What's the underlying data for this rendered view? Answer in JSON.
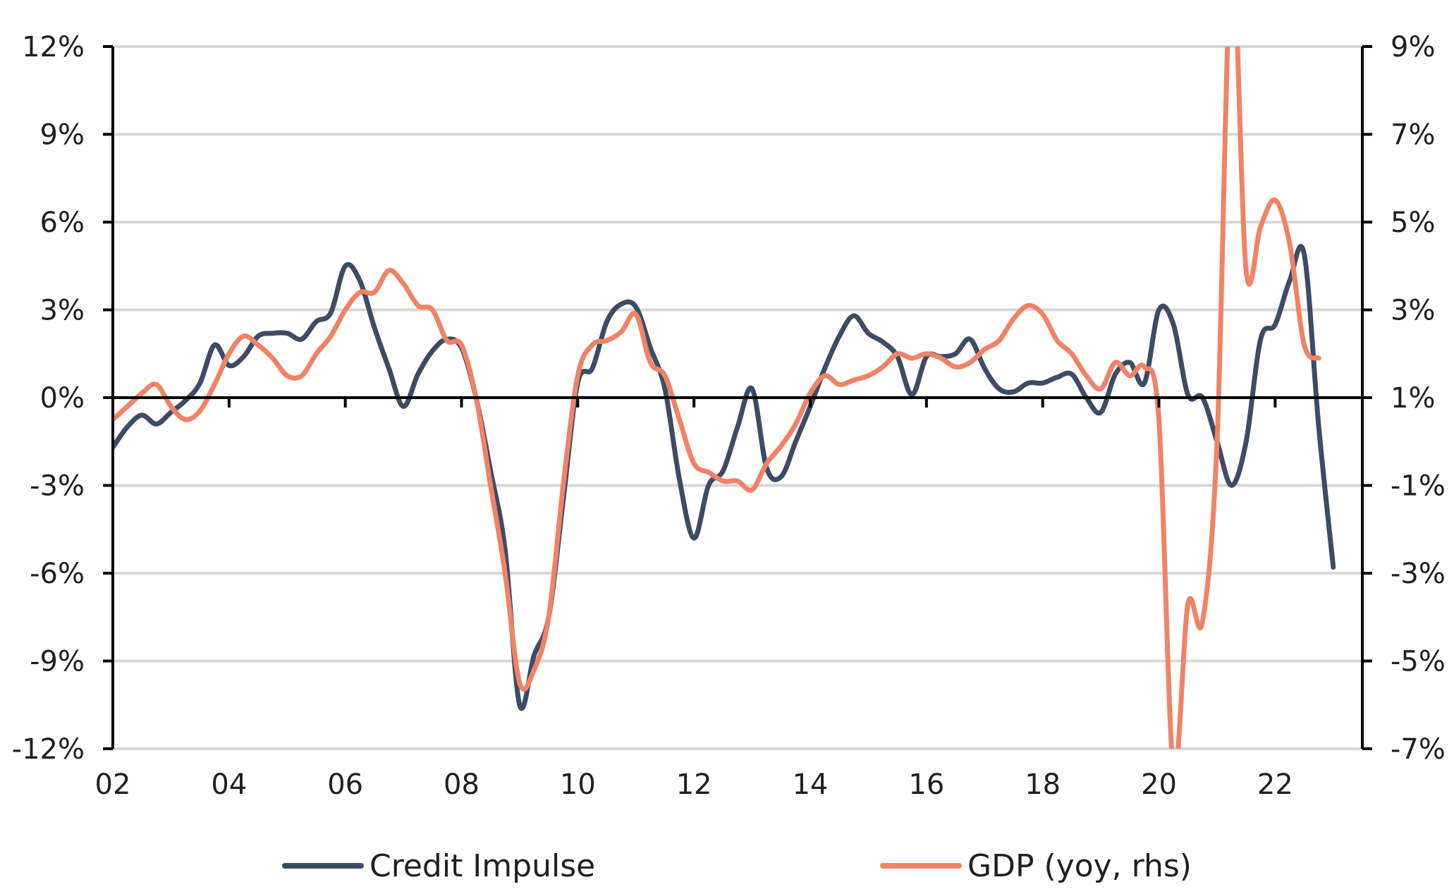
{
  "chart_data": {
    "type": "line",
    "title": "",
    "xlabel": "",
    "x_range": [
      2002.0,
      2023.5
    ],
    "x_ticks": [
      2002,
      2004,
      2006,
      2008,
      2010,
      2012,
      2014,
      2016,
      2018,
      2020,
      2022
    ],
    "x_tick_labels": [
      "02",
      "04",
      "06",
      "08",
      "10",
      "12",
      "14",
      "16",
      "18",
      "20",
      "22"
    ],
    "y_left": {
      "ylim": [
        -12,
        12
      ],
      "ticks": [
        12,
        9,
        6,
        3,
        0,
        -3,
        -6,
        -9,
        -12
      ],
      "tick_labels": [
        "12%",
        "9%",
        "6%",
        "3%",
        "0%",
        "-3%",
        "-6%",
        "-9%",
        "-12%"
      ]
    },
    "y_right": {
      "ylim": [
        -7,
        9
      ],
      "ticks": [
        9,
        7,
        5,
        3,
        1,
        -1,
        -3,
        -5,
        -7
      ],
      "tick_labels": [
        "9%",
        "7%",
        "5%",
        "3%",
        "1%",
        "-1%",
        "-3%",
        "-5%",
        "-7%"
      ]
    },
    "grid": "horizontal",
    "legend_position": "bottom",
    "series": [
      {
        "name": "Credit Impulse",
        "axis": "left",
        "color": "#3d4b66",
        "points": [
          [
            2002.0,
            -1.7
          ],
          [
            2002.25,
            -1.0
          ],
          [
            2002.5,
            -0.6
          ],
          [
            2002.75,
            -0.9
          ],
          [
            2003.0,
            -0.5
          ],
          [
            2003.25,
            -0.1
          ],
          [
            2003.5,
            0.5
          ],
          [
            2003.75,
            1.8
          ],
          [
            2004.0,
            1.1
          ],
          [
            2004.25,
            1.4
          ],
          [
            2004.5,
            2.1
          ],
          [
            2004.75,
            2.2
          ],
          [
            2005.0,
            2.2
          ],
          [
            2005.25,
            2.0
          ],
          [
            2005.5,
            2.6
          ],
          [
            2005.75,
            2.9
          ],
          [
            2006.0,
            4.5
          ],
          [
            2006.25,
            4.0
          ],
          [
            2006.5,
            2.4
          ],
          [
            2006.75,
            1.0
          ],
          [
            2007.0,
            -0.3
          ],
          [
            2007.25,
            0.8
          ],
          [
            2007.5,
            1.6
          ],
          [
            2007.75,
            2.0
          ],
          [
            2008.0,
            1.7
          ],
          [
            2008.25,
            0.0
          ],
          [
            2008.5,
            -2.5
          ],
          [
            2008.75,
            -5.2
          ],
          [
            2009.0,
            -10.5
          ],
          [
            2009.25,
            -8.8
          ],
          [
            2009.5,
            -7.5
          ],
          [
            2009.75,
            -3.5
          ],
          [
            2010.0,
            0.5
          ],
          [
            2010.25,
            1.0
          ],
          [
            2010.5,
            2.6
          ],
          [
            2010.75,
            3.2
          ],
          [
            2011.0,
            3.1
          ],
          [
            2011.25,
            1.7
          ],
          [
            2011.5,
            0.3
          ],
          [
            2011.75,
            -2.8
          ],
          [
            2012.0,
            -4.8
          ],
          [
            2012.25,
            -3.0
          ],
          [
            2012.5,
            -2.5
          ],
          [
            2012.75,
            -1.0
          ],
          [
            2013.0,
            0.3
          ],
          [
            2013.25,
            -2.4
          ],
          [
            2013.5,
            -2.7
          ],
          [
            2013.75,
            -1.5
          ],
          [
            2014.0,
            -0.3
          ],
          [
            2014.25,
            1.0
          ],
          [
            2014.5,
            2.1
          ],
          [
            2014.75,
            2.8
          ],
          [
            2015.0,
            2.2
          ],
          [
            2015.25,
            1.9
          ],
          [
            2015.5,
            1.4
          ],
          [
            2015.75,
            0.1
          ],
          [
            2016.0,
            1.4
          ],
          [
            2016.25,
            1.4
          ],
          [
            2016.5,
            1.5
          ],
          [
            2016.75,
            2.0
          ],
          [
            2017.0,
            1.0
          ],
          [
            2017.25,
            0.3
          ],
          [
            2017.5,
            0.2
          ],
          [
            2017.75,
            0.5
          ],
          [
            2018.0,
            0.5
          ],
          [
            2018.25,
            0.7
          ],
          [
            2018.5,
            0.8
          ],
          [
            2018.75,
            0.0
          ],
          [
            2019.0,
            -0.5
          ],
          [
            2019.25,
            0.8
          ],
          [
            2019.5,
            1.2
          ],
          [
            2019.75,
            0.5
          ],
          [
            2020.0,
            3.0
          ],
          [
            2020.25,
            2.5
          ],
          [
            2020.5,
            0.1
          ],
          [
            2020.75,
            0.0
          ],
          [
            2021.0,
            -1.5
          ],
          [
            2021.25,
            -3.0
          ],
          [
            2021.5,
            -1.5
          ],
          [
            2021.75,
            2.0
          ],
          [
            2022.0,
            2.5
          ],
          [
            2022.25,
            4.0
          ],
          [
            2022.5,
            4.9
          ],
          [
            2022.75,
            -1.0
          ],
          [
            2023.0,
            -5.8
          ]
        ]
      },
      {
        "name": "GDP (yoy, rhs)",
        "axis": "right",
        "color": "#f08366",
        "points": [
          [
            2002.0,
            0.5
          ],
          [
            2002.25,
            0.8
          ],
          [
            2002.5,
            1.1
          ],
          [
            2002.75,
            1.3
          ],
          [
            2003.0,
            0.8
          ],
          [
            2003.25,
            0.5
          ],
          [
            2003.5,
            0.7
          ],
          [
            2003.75,
            1.3
          ],
          [
            2004.0,
            2.0
          ],
          [
            2004.25,
            2.4
          ],
          [
            2004.5,
            2.2
          ],
          [
            2004.75,
            1.9
          ],
          [
            2005.0,
            1.5
          ],
          [
            2005.25,
            1.5
          ],
          [
            2005.5,
            2.0
          ],
          [
            2005.75,
            2.4
          ],
          [
            2006.0,
            3.0
          ],
          [
            2006.25,
            3.4
          ],
          [
            2006.5,
            3.4
          ],
          [
            2006.75,
            3.9
          ],
          [
            2007.0,
            3.6
          ],
          [
            2007.25,
            3.1
          ],
          [
            2007.5,
            3.0
          ],
          [
            2007.75,
            2.3
          ],
          [
            2008.0,
            2.2
          ],
          [
            2008.25,
            1.0
          ],
          [
            2008.5,
            -1.0
          ],
          [
            2008.75,
            -3.0
          ],
          [
            2009.0,
            -5.5
          ],
          [
            2009.25,
            -5.2
          ],
          [
            2009.5,
            -4.0
          ],
          [
            2009.75,
            -1.0
          ],
          [
            2010.0,
            1.5
          ],
          [
            2010.25,
            2.2
          ],
          [
            2010.5,
            2.3
          ],
          [
            2010.75,
            2.5
          ],
          [
            2011.0,
            2.9
          ],
          [
            2011.25,
            1.8
          ],
          [
            2011.5,
            1.5
          ],
          [
            2011.75,
            0.5
          ],
          [
            2012.0,
            -0.5
          ],
          [
            2012.25,
            -0.7
          ],
          [
            2012.5,
            -0.9
          ],
          [
            2012.75,
            -0.9
          ],
          [
            2013.0,
            -1.1
          ],
          [
            2013.25,
            -0.5
          ],
          [
            2013.5,
            -0.1
          ],
          [
            2013.75,
            0.4
          ],
          [
            2014.0,
            1.1
          ],
          [
            2014.25,
            1.5
          ],
          [
            2014.5,
            1.3
          ],
          [
            2014.75,
            1.4
          ],
          [
            2015.0,
            1.5
          ],
          [
            2015.25,
            1.7
          ],
          [
            2015.5,
            2.0
          ],
          [
            2015.75,
            1.9
          ],
          [
            2016.0,
            2.0
          ],
          [
            2016.25,
            1.9
          ],
          [
            2016.5,
            1.7
          ],
          [
            2016.75,
            1.8
          ],
          [
            2017.0,
            2.1
          ],
          [
            2017.25,
            2.3
          ],
          [
            2017.5,
            2.8
          ],
          [
            2017.75,
            3.1
          ],
          [
            2018.0,
            2.9
          ],
          [
            2018.25,
            2.3
          ],
          [
            2018.5,
            2.0
          ],
          [
            2018.75,
            1.5
          ],
          [
            2019.0,
            1.2
          ],
          [
            2019.25,
            1.8
          ],
          [
            2019.5,
            1.5
          ],
          [
            2019.75,
            1.7
          ],
          [
            2020.0,
            0.5
          ],
          [
            2020.25,
            -7.5
          ],
          [
            2020.5,
            -3.7
          ],
          [
            2020.75,
            -4.1
          ],
          [
            2021.0,
            0.0
          ],
          [
            2021.25,
            11.0
          ],
          [
            2021.5,
            3.9
          ],
          [
            2021.75,
            4.9
          ],
          [
            2022.0,
            5.5
          ],
          [
            2022.25,
            4.5
          ],
          [
            2022.5,
            2.2
          ],
          [
            2022.75,
            1.9
          ]
        ]
      }
    ]
  }
}
